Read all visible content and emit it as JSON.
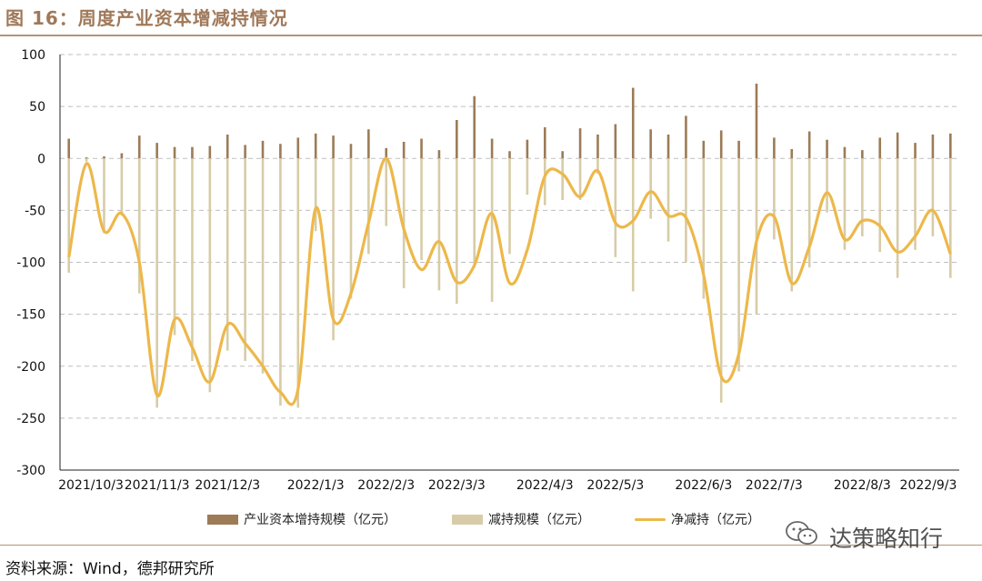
{
  "header": {
    "title": "图 16：周度产业资本增减持情况"
  },
  "footer": {
    "source": "资料来源：Wind，德邦研究所",
    "watermark": "达策略知行"
  },
  "colors": {
    "increase": "#9c7b56",
    "decrease": "#d7cca7",
    "net": "#edb84a",
    "grid": "#bfbfbf",
    "rule": "#b39479"
  },
  "chart_data": {
    "type": "bar",
    "ylim": [
      -300,
      100
    ],
    "yticks": [
      100,
      50,
      0,
      -50,
      -100,
      -150,
      -200,
      -250,
      -300
    ],
    "xtick_labels": [
      "2021/10/3",
      "2021/11/3",
      "2021/12/3",
      "2022/1/3",
      "2022/2/3",
      "2022/3/3",
      "2022/4/3",
      "2022/5/3",
      "2022/6/3",
      "2022/7/3",
      "2022/8/3",
      "2022/9/3"
    ],
    "xtick_index": [
      0,
      5,
      9,
      14,
      18,
      22,
      27,
      31,
      36,
      40,
      45,
      49
    ],
    "legend_position": "bottom",
    "series": [
      {
        "name": "产业资本增持规模（亿元）",
        "type": "bar",
        "values": [
          19,
          1,
          2,
          5,
          22,
          15,
          11,
          11,
          12,
          23,
          13,
          17,
          14,
          20,
          24,
          22,
          14,
          28,
          10,
          16,
          19,
          8,
          37,
          60,
          19,
          7,
          18,
          30,
          7,
          29,
          23,
          33,
          68,
          28,
          23,
          41,
          17,
          27,
          17,
          72,
          20,
          9,
          26,
          18,
          11,
          8,
          20,
          25,
          15,
          23,
          24
        ]
      },
      {
        "name": "减持规模（亿元）",
        "type": "bar",
        "values": [
          -110,
          -3,
          -72,
          -55,
          -130,
          -240,
          -170,
          -195,
          -225,
          -185,
          -195,
          -207,
          -238,
          -240,
          -70,
          -175,
          -135,
          -92,
          -65,
          -125,
          -98,
          -127,
          -140,
          -105,
          -138,
          -92,
          -35,
          -45,
          -40,
          -40,
          -15,
          -95,
          -128,
          -58,
          -80,
          -100,
          -135,
          -235,
          -205,
          -150,
          -78,
          -128,
          -105,
          -52,
          -88,
          -75,
          -90,
          -115,
          -88,
          -75,
          -115
        ]
      },
      {
        "name": "净减持（亿元）",
        "type": "line",
        "values": [
          -95,
          -5,
          -70,
          -53,
          -100,
          -228,
          -155,
          -182,
          -215,
          -160,
          -178,
          -200,
          -225,
          -222,
          -48,
          -155,
          -130,
          -62,
          0,
          -68,
          -107,
          -80,
          -119,
          -103,
          -53,
          -120,
          -88,
          -17,
          -15,
          -37,
          -12,
          -62,
          -60,
          -32,
          -55,
          -57,
          -112,
          -210,
          -188,
          -80,
          -56,
          -120,
          -85,
          -33,
          -78,
          -60,
          -65,
          -90,
          -75,
          -50,
          -92
        ]
      }
    ]
  }
}
